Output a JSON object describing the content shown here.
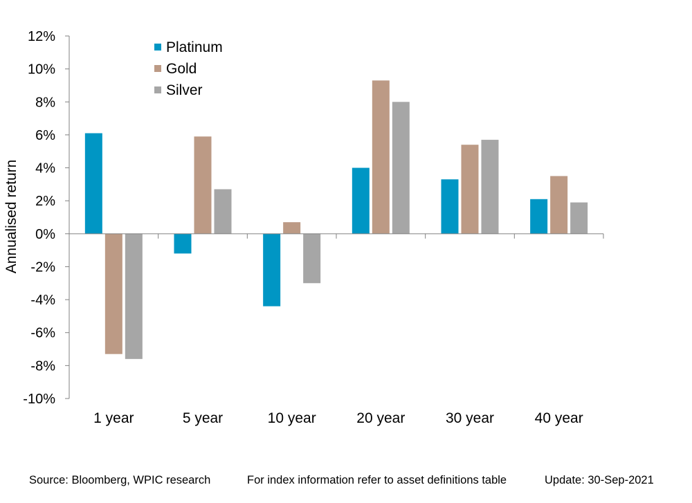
{
  "chart_data": {
    "type": "bar",
    "categories": [
      "1 year",
      "5 year",
      "10 year",
      "20 year",
      "30 year",
      "40 year"
    ],
    "series": [
      {
        "name": "Platinum",
        "color": "#0096C4",
        "values": [
          6.1,
          -1.2,
          -4.4,
          4.0,
          3.3,
          2.1
        ]
      },
      {
        "name": "Gold",
        "color": "#BC9A85",
        "values": [
          -7.3,
          5.9,
          0.7,
          9.3,
          5.4,
          3.5
        ]
      },
      {
        "name": "Silver",
        "color": "#A6A6A6",
        "values": [
          -7.6,
          2.7,
          -3.0,
          8.0,
          5.7,
          1.9
        ]
      }
    ],
    "ylabel": "Annualised return",
    "ylim": [
      -10,
      12
    ],
    "yticks": [
      12,
      10,
      8,
      6,
      4,
      2,
      0,
      -2,
      -4,
      -6,
      -8,
      -10
    ],
    "ytick_labels": [
      "12%",
      "10%",
      "8%",
      "6%",
      "4%",
      "2%",
      "0%",
      "-2%",
      "-4%",
      "-6%",
      "-8%",
      "-10%"
    ],
    "grid": false,
    "legend_position": "top-left"
  },
  "footer": {
    "source": "Source: Bloomberg, WPIC research",
    "note": "For index information refer to asset definitions table",
    "update": "Update: 30-Sep-2021"
  }
}
